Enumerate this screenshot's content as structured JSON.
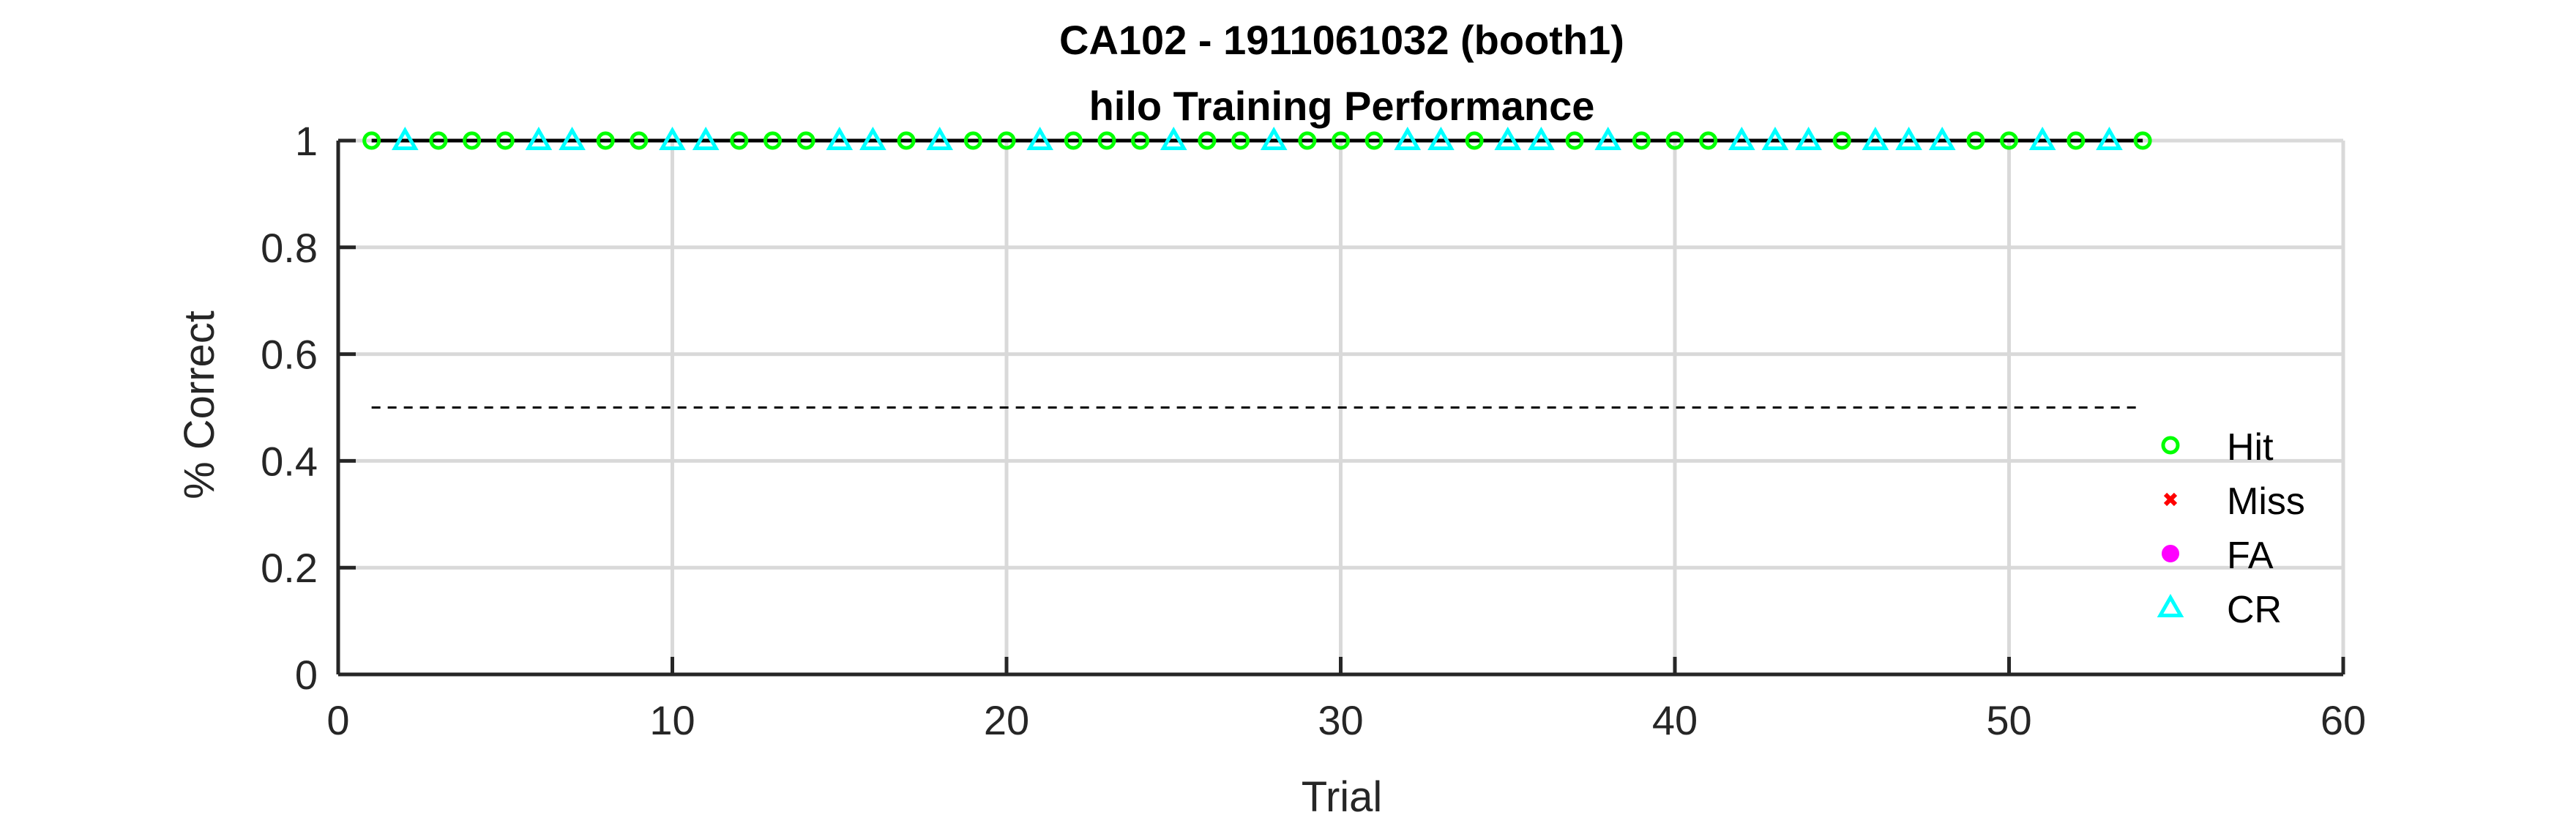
{
  "chart_data": {
    "type": "scatter",
    "title": "CA102 - 1911061032 (booth1)",
    "subtitle": "hilo Training Performance",
    "xlabel": "Trial",
    "ylabel": "% Correct",
    "xlim": [
      0,
      60
    ],
    "ylim": [
      0,
      1
    ],
    "xticks": [
      "0",
      "10",
      "20",
      "30",
      "40",
      "50",
      "60"
    ],
    "yticks": [
      "0",
      "0.2",
      "0.4",
      "0.6",
      "0.8",
      "1"
    ],
    "grid": true,
    "legend_position": "right",
    "performance_line": {
      "x_start": 1,
      "x_end": 54,
      "y": 1,
      "color": "#000000"
    },
    "chance_line": {
      "x_start": 1,
      "x_end": 54,
      "y": 0.5,
      "style": "dashed",
      "color": "#000000"
    },
    "series": [
      {
        "name": "Hit",
        "marker": "circle",
        "color": "#00ff00",
        "x": [
          1,
          3,
          4,
          5,
          8,
          9,
          12,
          13,
          14,
          17,
          19,
          20,
          22,
          23,
          24,
          26,
          27,
          29,
          30,
          31,
          34,
          37,
          39,
          40,
          41,
          45,
          49,
          50,
          52,
          54
        ],
        "y": [
          1,
          1,
          1,
          1,
          1,
          1,
          1,
          1,
          1,
          1,
          1,
          1,
          1,
          1,
          1,
          1,
          1,
          1,
          1,
          1,
          1,
          1,
          1,
          1,
          1,
          1,
          1,
          1,
          1,
          1
        ]
      },
      {
        "name": "Miss",
        "marker": "x",
        "color": "#ff0000",
        "x": [],
        "y": []
      },
      {
        "name": "FA",
        "marker": "dot",
        "color": "#ff00ff",
        "x": [],
        "y": []
      },
      {
        "name": "CR",
        "marker": "triangle",
        "color": "#00ffff",
        "x": [
          2,
          6,
          7,
          10,
          11,
          15,
          16,
          18,
          21,
          25,
          28,
          32,
          33,
          35,
          36,
          38,
          42,
          43,
          44,
          46,
          47,
          48,
          51,
          53
        ],
        "y": [
          1,
          1,
          1,
          1,
          1,
          1,
          1,
          1,
          1,
          1,
          1,
          1,
          1,
          1,
          1,
          1,
          1,
          1,
          1,
          1,
          1,
          1,
          1,
          1
        ]
      }
    ]
  }
}
